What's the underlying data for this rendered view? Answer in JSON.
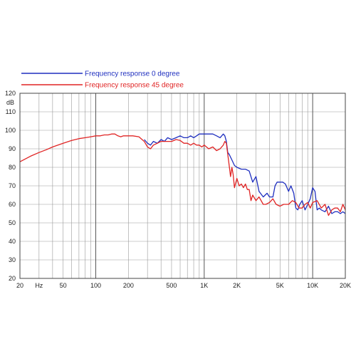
{
  "chart_data": {
    "type": "line",
    "xscale": "log",
    "xlim": [
      20,
      20000
    ],
    "ylim": [
      20,
      120
    ],
    "ylabel": "dB",
    "grid": true,
    "legend_position": "top-left, above plot",
    "x_ticks": [
      {
        "value": 20,
        "label": "20"
      },
      {
        "value": 30,
        "label": "Hz"
      },
      {
        "value": 50,
        "label": "50"
      },
      {
        "value": 100,
        "label": "100"
      },
      {
        "value": 200,
        "label": "200"
      },
      {
        "value": 500,
        "label": "500"
      },
      {
        "value": 1000,
        "label": "1K"
      },
      {
        "value": 2000,
        "label": "2K"
      },
      {
        "value": 5000,
        "label": "5K"
      },
      {
        "value": 10000,
        "label": "10K"
      },
      {
        "value": 20000,
        "label": "20K"
      }
    ],
    "y_ticks": [
      20,
      30,
      40,
      50,
      60,
      70,
      80,
      90,
      100,
      110,
      120
    ],
    "series": [
      {
        "name": "Frequency response 0 degree",
        "color": "#1f2fbf",
        "x": [
          280,
          300,
          320,
          340,
          370,
          400,
          430,
          460,
          500,
          550,
          600,
          650,
          700,
          750,
          800,
          850,
          900,
          950,
          1000,
          1100,
          1200,
          1300,
          1400,
          1500,
          1550,
          1600,
          1650,
          1700,
          1800,
          1900,
          2000,
          2200,
          2400,
          2600,
          2800,
          3000,
          3200,
          3300,
          3500,
          3800,
          4000,
          4300,
          4500,
          4700,
          5000,
          5300,
          5600,
          6000,
          6300,
          6700,
          7000,
          7300,
          7600,
          8000,
          8500,
          9000,
          9500,
          10000,
          10500,
          11000,
          11500,
          12000,
          13000,
          14000,
          15000,
          16000,
          17000,
          18000,
          19000,
          20000
        ],
        "values": [
          95,
          93,
          92,
          94,
          93,
          95,
          94,
          96,
          95,
          96,
          97,
          96,
          96,
          97,
          96,
          97,
          98,
          98,
          98,
          98,
          98,
          97,
          96,
          98,
          97,
          94,
          88,
          87,
          84,
          81,
          80,
          79,
          79,
          78,
          72,
          75,
          67,
          66,
          64,
          66,
          64,
          64,
          70,
          72,
          72,
          72,
          71,
          67,
          70,
          66,
          58,
          57,
          60,
          62,
          57,
          60,
          63,
          69,
          67,
          57,
          58,
          57,
          56,
          59,
          55,
          56,
          56,
          55,
          56,
          55
        ]
      },
      {
        "name": "Frequency response 45 degree",
        "color": "#e02424",
        "x": [
          20,
          25,
          30,
          35,
          40,
          50,
          60,
          70,
          80,
          90,
          100,
          110,
          120,
          130,
          140,
          150,
          160,
          170,
          180,
          200,
          220,
          250,
          280,
          300,
          320,
          340,
          370,
          400,
          450,
          500,
          550,
          600,
          650,
          700,
          750,
          800,
          850,
          900,
          950,
          1000,
          1050,
          1100,
          1200,
          1300,
          1400,
          1500,
          1550,
          1600,
          1650,
          1700,
          1750,
          1800,
          1850,
          1900,
          2000,
          2100,
          2200,
          2300,
          2400,
          2500,
          2600,
          2700,
          2800,
          3000,
          3200,
          3500,
          3700,
          4000,
          4300,
          4600,
          5000,
          5400,
          6000,
          6500,
          7000,
          7500,
          8000,
          8500,
          9000,
          9500,
          10000,
          11000,
          12000,
          13000,
          14000,
          15000,
          16000,
          17000,
          18000,
          19000,
          20000
        ],
        "values": [
          83,
          86,
          88,
          89.5,
          91,
          93,
          94.5,
          95.5,
          96,
          96.5,
          97,
          97,
          97.5,
          97.5,
          98,
          98,
          97,
          96.5,
          97,
          97,
          97,
          96.5,
          94,
          91,
          90,
          92,
          93,
          94,
          94,
          94,
          95,
          94.5,
          93,
          93,
          92,
          93,
          92,
          92,
          91,
          92,
          91,
          90,
          91,
          89,
          90,
          92,
          94,
          93,
          87,
          81,
          75,
          80,
          76,
          69,
          74,
          70,
          71,
          69,
          71,
          68,
          68,
          62,
          65,
          62,
          64,
          60,
          60,
          61,
          63,
          60,
          59,
          60,
          60,
          62,
          61,
          58,
          58,
          60,
          61,
          58,
          61,
          62,
          58,
          60,
          54,
          57,
          58,
          58,
          56,
          60,
          57
        ]
      }
    ]
  }
}
